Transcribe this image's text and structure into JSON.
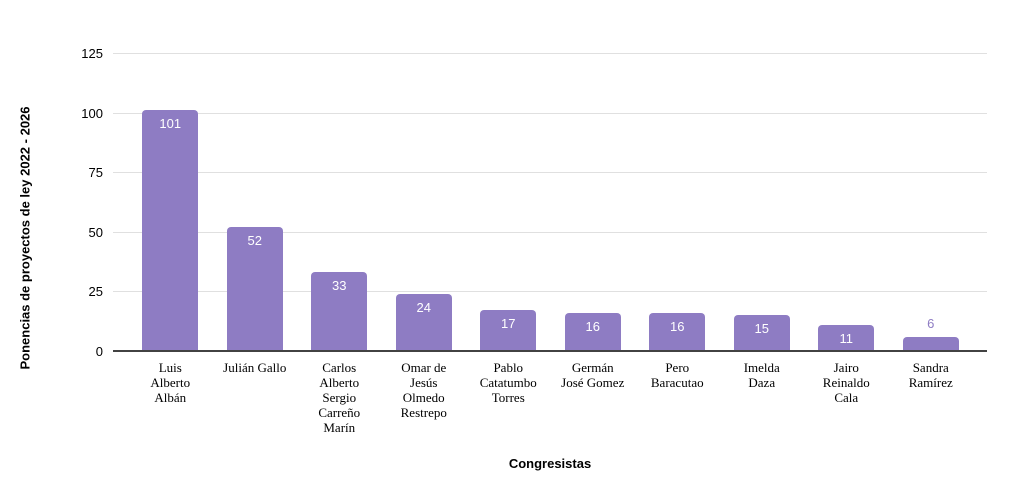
{
  "chart_data": {
    "type": "bar",
    "title": "",
    "xlabel": "Congresistas",
    "ylabel": "Ponencias de proyectos de ley 2022 - 2026",
    "categories": [
      "Luis Alberto Albán",
      "Julián Gallo",
      "Carlos Alberto Sergio Carreño Marín",
      "Omar de Jesús Olmedo Restrepo",
      "Pablo Catatumbo Torres",
      "Germán José Gomez",
      "Pero Baracutao",
      "Imelda Daza",
      "Jairo Reinaldo Cala",
      "Sandra Ramírez"
    ],
    "category_lines": [
      [
        "Luis",
        "Alberto",
        "Albán"
      ],
      [
        "Julián Gallo"
      ],
      [
        "Carlos",
        "Alberto",
        "Sergio",
        "Carreño",
        "Marín"
      ],
      [
        "Omar de",
        "Jesús",
        "Olmedo",
        "Restrepo"
      ],
      [
        "Pablo",
        "Catatumbo",
        "Torres"
      ],
      [
        "Germán",
        "José Gomez"
      ],
      [
        "Pero",
        "Baracutao"
      ],
      [
        "Imelda",
        "Daza"
      ],
      [
        "Jairo",
        "Reinaldo",
        "Cala"
      ],
      [
        "Sandra",
        "Ramírez"
      ]
    ],
    "values": [
      101,
      52,
      33,
      24,
      17,
      16,
      16,
      15,
      11,
      6
    ],
    "value_label_placement": [
      "inside",
      "inside",
      "inside",
      "inside",
      "inside",
      "inside",
      "inside",
      "inside",
      "inside",
      "above"
    ],
    "yticks": [
      0,
      25,
      50,
      75,
      100,
      125
    ],
    "ylim": [
      0,
      125
    ],
    "grid": true,
    "legend": "none",
    "colors": {
      "bar": "#8e7cc3",
      "value_label_inside": "#ffffff",
      "value_label_outside": "#8e7cc3",
      "gridline": "#e0e0e0",
      "axis_line": "#424242",
      "text": "#000000"
    }
  }
}
